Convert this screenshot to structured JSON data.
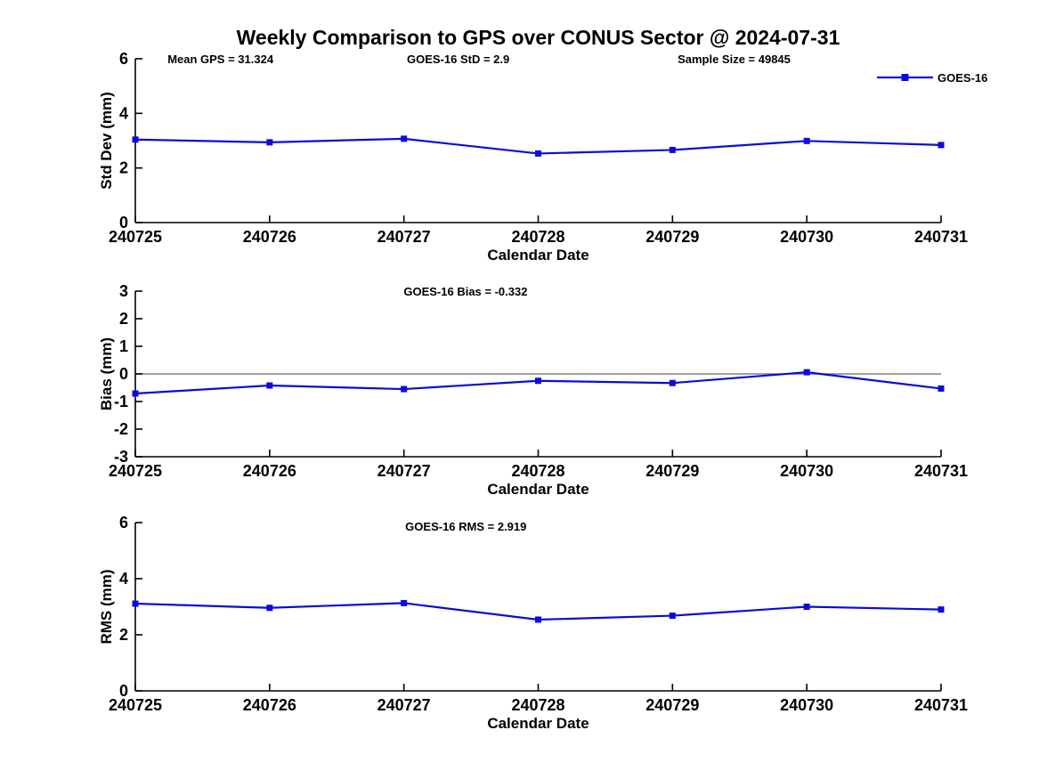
{
  "page_title": "Weekly Comparison to GPS over CONUS Sector @ 2024-07-31",
  "colors": {
    "series": "#0b0bd9",
    "zero_line": "#808080",
    "axis": "#000000",
    "text": "#000000"
  },
  "legend": {
    "label": "GOES-16",
    "marker": "square"
  },
  "chart_data": [
    {
      "type": "line",
      "name": "std-dev",
      "categories": [
        "240725",
        "240726",
        "240727",
        "240728",
        "240729",
        "240730",
        "240731"
      ],
      "xlabel": "Calendar Date",
      "ylabel": "Std Dev (mm)",
      "ylim": [
        0,
        6
      ],
      "yticks": [
        0,
        2,
        4,
        6
      ],
      "grid": false,
      "zero_line": false,
      "legend_position": "top-right-outside",
      "series": [
        {
          "name": "GOES-16",
          "values": [
            3.04,
            2.94,
            3.07,
            2.53,
            2.66,
            2.99,
            2.84
          ]
        }
      ],
      "annotations": [
        "Mean GPS = 31.324",
        "GOES-16 StD = 2.9",
        "Sample Size = 49845"
      ]
    },
    {
      "type": "line",
      "name": "bias",
      "categories": [
        "240725",
        "240726",
        "240727",
        "240728",
        "240729",
        "240730",
        "240731"
      ],
      "xlabel": "Calendar Date",
      "ylabel": "Bias (mm)",
      "ylim": [
        -3,
        3
      ],
      "yticks": [
        -3,
        -2,
        -1,
        0,
        1,
        2,
        3
      ],
      "grid": false,
      "zero_line": true,
      "series": [
        {
          "name": "GOES-16",
          "values": [
            -0.71,
            -0.42,
            -0.55,
            -0.25,
            -0.33,
            0.06,
            -0.53
          ]
        }
      ],
      "annotations": [
        "GOES-16 Bias  = -0.332"
      ]
    },
    {
      "type": "line",
      "name": "rms",
      "categories": [
        "240725",
        "240726",
        "240727",
        "240728",
        "240729",
        "240730",
        "240731"
      ],
      "xlabel": "Calendar Date",
      "ylabel": "RMS (mm)",
      "ylim": [
        0,
        6
      ],
      "yticks": [
        0,
        2,
        4,
        6
      ],
      "grid": false,
      "zero_line": false,
      "series": [
        {
          "name": "GOES-16",
          "values": [
            3.11,
            2.96,
            3.13,
            2.54,
            2.68,
            3.0,
            2.9
          ]
        }
      ],
      "annotations": [
        "GOES-16 RMS = 2.919"
      ]
    }
  ]
}
